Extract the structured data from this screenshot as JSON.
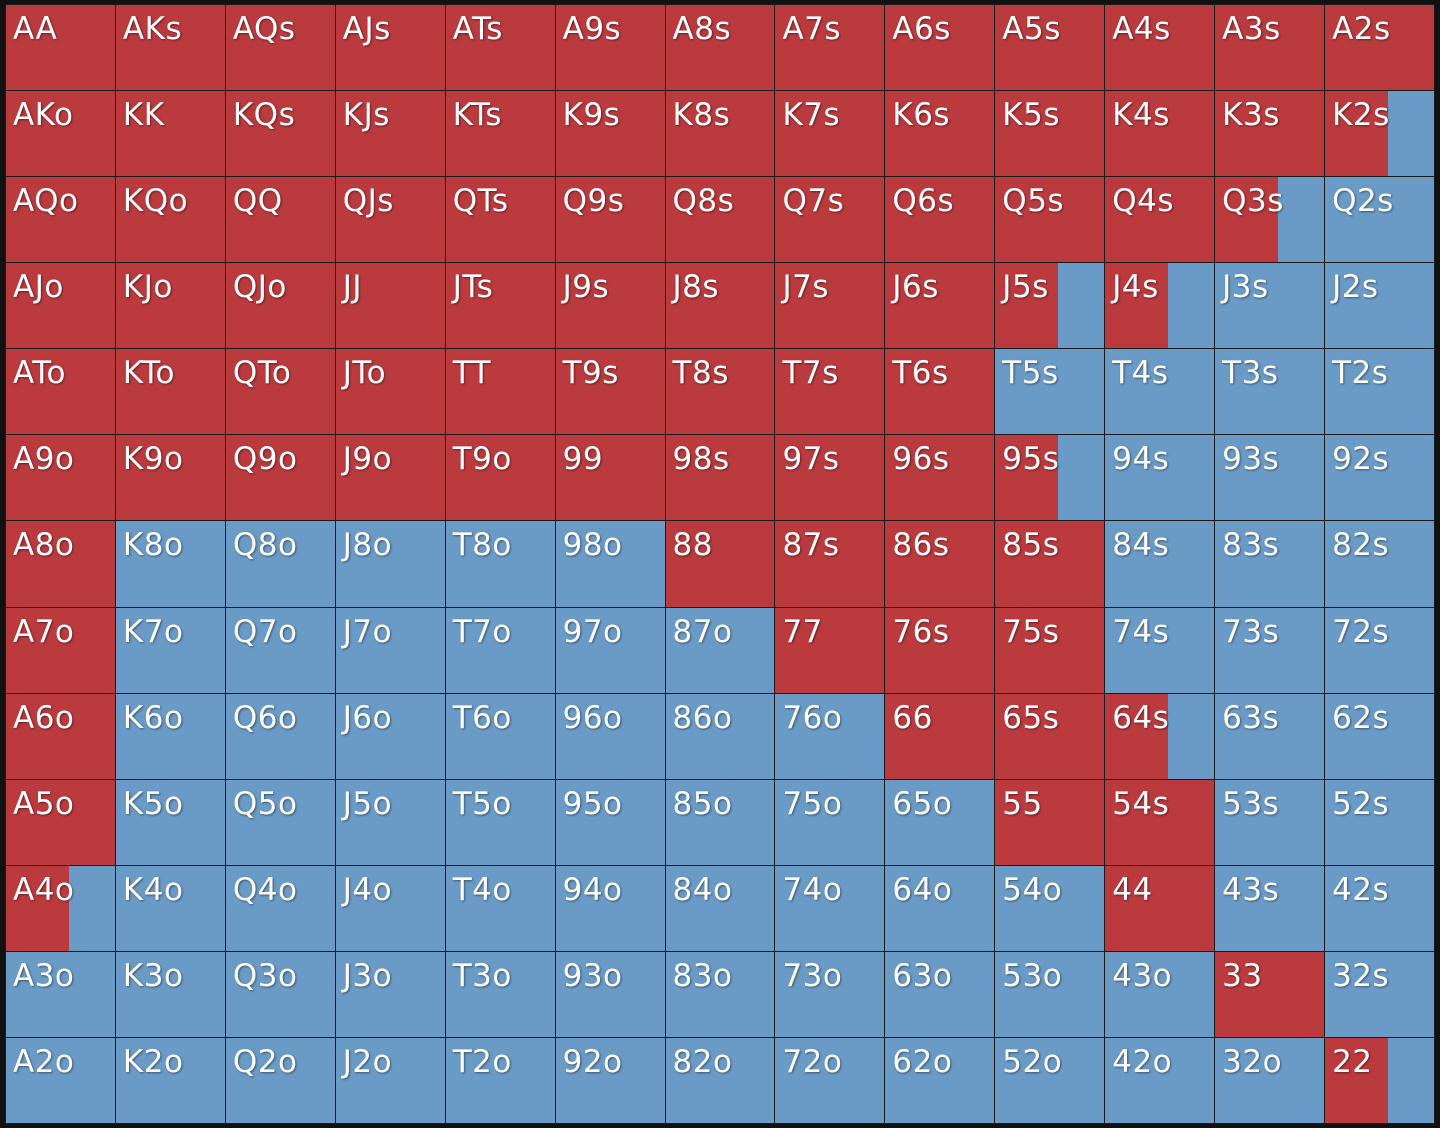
{
  "colors": {
    "raise": "#bb3a3e",
    "fold": "#6a9bc7",
    "border": "#1a1a1a"
  },
  "chart_data": {
    "type": "heatmap",
    "rows": [
      [
        {
          "hand": "AA",
          "raise": 1
        },
        {
          "hand": "AKs",
          "raise": 1
        },
        {
          "hand": "AQs",
          "raise": 1
        },
        {
          "hand": "AJs",
          "raise": 1
        },
        {
          "hand": "ATs",
          "raise": 1
        },
        {
          "hand": "A9s",
          "raise": 1
        },
        {
          "hand": "A8s",
          "raise": 1
        },
        {
          "hand": "A7s",
          "raise": 1
        },
        {
          "hand": "A6s",
          "raise": 1
        },
        {
          "hand": "A5s",
          "raise": 1
        },
        {
          "hand": "A4s",
          "raise": 1
        },
        {
          "hand": "A3s",
          "raise": 1
        },
        {
          "hand": "A2s",
          "raise": 1
        }
      ],
      [
        {
          "hand": "AKo",
          "raise": 1
        },
        {
          "hand": "KK",
          "raise": 1
        },
        {
          "hand": "KQs",
          "raise": 1
        },
        {
          "hand": "KJs",
          "raise": 1
        },
        {
          "hand": "KTs",
          "raise": 1
        },
        {
          "hand": "K9s",
          "raise": 1
        },
        {
          "hand": "K8s",
          "raise": 1
        },
        {
          "hand": "K7s",
          "raise": 1
        },
        {
          "hand": "K6s",
          "raise": 1
        },
        {
          "hand": "K5s",
          "raise": 1
        },
        {
          "hand": "K4s",
          "raise": 1
        },
        {
          "hand": "K3s",
          "raise": 1
        },
        {
          "hand": "K2s",
          "raise": 0.58
        }
      ],
      [
        {
          "hand": "AQo",
          "raise": 1
        },
        {
          "hand": "KQo",
          "raise": 1
        },
        {
          "hand": "QQ",
          "raise": 1
        },
        {
          "hand": "QJs",
          "raise": 1
        },
        {
          "hand": "QTs",
          "raise": 1
        },
        {
          "hand": "Q9s",
          "raise": 1
        },
        {
          "hand": "Q8s",
          "raise": 1
        },
        {
          "hand": "Q7s",
          "raise": 1
        },
        {
          "hand": "Q6s",
          "raise": 1
        },
        {
          "hand": "Q5s",
          "raise": 1
        },
        {
          "hand": "Q4s",
          "raise": 1
        },
        {
          "hand": "Q3s",
          "raise": 0.58
        },
        {
          "hand": "Q2s",
          "raise": 0
        }
      ],
      [
        {
          "hand": "AJo",
          "raise": 1
        },
        {
          "hand": "KJo",
          "raise": 1
        },
        {
          "hand": "QJo",
          "raise": 1
        },
        {
          "hand": "JJ",
          "raise": 1
        },
        {
          "hand": "JTs",
          "raise": 1
        },
        {
          "hand": "J9s",
          "raise": 1
        },
        {
          "hand": "J8s",
          "raise": 1
        },
        {
          "hand": "J7s",
          "raise": 1
        },
        {
          "hand": "J6s",
          "raise": 1
        },
        {
          "hand": "J5s",
          "raise": 0.58
        },
        {
          "hand": "J4s",
          "raise": 0.58
        },
        {
          "hand": "J3s",
          "raise": 0
        },
        {
          "hand": "J2s",
          "raise": 0
        }
      ],
      [
        {
          "hand": "ATo",
          "raise": 1
        },
        {
          "hand": "KTo",
          "raise": 1
        },
        {
          "hand": "QTo",
          "raise": 1
        },
        {
          "hand": "JTo",
          "raise": 1
        },
        {
          "hand": "TT",
          "raise": 1
        },
        {
          "hand": "T9s",
          "raise": 1
        },
        {
          "hand": "T8s",
          "raise": 1
        },
        {
          "hand": "T7s",
          "raise": 1
        },
        {
          "hand": "T6s",
          "raise": 1
        },
        {
          "hand": "T5s",
          "raise": 0
        },
        {
          "hand": "T4s",
          "raise": 0
        },
        {
          "hand": "T3s",
          "raise": 0
        },
        {
          "hand": "T2s",
          "raise": 0
        }
      ],
      [
        {
          "hand": "A9o",
          "raise": 1
        },
        {
          "hand": "K9o",
          "raise": 1
        },
        {
          "hand": "Q9o",
          "raise": 1
        },
        {
          "hand": "J9o",
          "raise": 1
        },
        {
          "hand": "T9o",
          "raise": 1
        },
        {
          "hand": "99",
          "raise": 1
        },
        {
          "hand": "98s",
          "raise": 1
        },
        {
          "hand": "97s",
          "raise": 1
        },
        {
          "hand": "96s",
          "raise": 1
        },
        {
          "hand": "95s",
          "raise": 0.58
        },
        {
          "hand": "94s",
          "raise": 0
        },
        {
          "hand": "93s",
          "raise": 0
        },
        {
          "hand": "92s",
          "raise": 0
        }
      ],
      [
        {
          "hand": "A8o",
          "raise": 1
        },
        {
          "hand": "K8o",
          "raise": 0
        },
        {
          "hand": "Q8o",
          "raise": 0
        },
        {
          "hand": "J8o",
          "raise": 0
        },
        {
          "hand": "T8o",
          "raise": 0
        },
        {
          "hand": "98o",
          "raise": 0
        },
        {
          "hand": "88",
          "raise": 1
        },
        {
          "hand": "87s",
          "raise": 1
        },
        {
          "hand": "86s",
          "raise": 1
        },
        {
          "hand": "85s",
          "raise": 1
        },
        {
          "hand": "84s",
          "raise": 0
        },
        {
          "hand": "83s",
          "raise": 0
        },
        {
          "hand": "82s",
          "raise": 0
        }
      ],
      [
        {
          "hand": "A7o",
          "raise": 1
        },
        {
          "hand": "K7o",
          "raise": 0
        },
        {
          "hand": "Q7o",
          "raise": 0
        },
        {
          "hand": "J7o",
          "raise": 0
        },
        {
          "hand": "T7o",
          "raise": 0
        },
        {
          "hand": "97o",
          "raise": 0
        },
        {
          "hand": "87o",
          "raise": 0
        },
        {
          "hand": "77",
          "raise": 1
        },
        {
          "hand": "76s",
          "raise": 1
        },
        {
          "hand": "75s",
          "raise": 1
        },
        {
          "hand": "74s",
          "raise": 0
        },
        {
          "hand": "73s",
          "raise": 0
        },
        {
          "hand": "72s",
          "raise": 0
        }
      ],
      [
        {
          "hand": "A6o",
          "raise": 1
        },
        {
          "hand": "K6o",
          "raise": 0
        },
        {
          "hand": "Q6o",
          "raise": 0
        },
        {
          "hand": "J6o",
          "raise": 0
        },
        {
          "hand": "T6o",
          "raise": 0
        },
        {
          "hand": "96o",
          "raise": 0
        },
        {
          "hand": "86o",
          "raise": 0
        },
        {
          "hand": "76o",
          "raise": 0
        },
        {
          "hand": "66",
          "raise": 1
        },
        {
          "hand": "65s",
          "raise": 1
        },
        {
          "hand": "64s",
          "raise": 0.58
        },
        {
          "hand": "63s",
          "raise": 0
        },
        {
          "hand": "62s",
          "raise": 0
        }
      ],
      [
        {
          "hand": "A5o",
          "raise": 1
        },
        {
          "hand": "K5o",
          "raise": 0
        },
        {
          "hand": "Q5o",
          "raise": 0
        },
        {
          "hand": "J5o",
          "raise": 0
        },
        {
          "hand": "T5o",
          "raise": 0
        },
        {
          "hand": "95o",
          "raise": 0
        },
        {
          "hand": "85o",
          "raise": 0
        },
        {
          "hand": "75o",
          "raise": 0
        },
        {
          "hand": "65o",
          "raise": 0
        },
        {
          "hand": "55",
          "raise": 1
        },
        {
          "hand": "54s",
          "raise": 1
        },
        {
          "hand": "53s",
          "raise": 0
        },
        {
          "hand": "52s",
          "raise": 0
        }
      ],
      [
        {
          "hand": "A4o",
          "raise": 0.58
        },
        {
          "hand": "K4o",
          "raise": 0
        },
        {
          "hand": "Q4o",
          "raise": 0
        },
        {
          "hand": "J4o",
          "raise": 0
        },
        {
          "hand": "T4o",
          "raise": 0
        },
        {
          "hand": "94o",
          "raise": 0
        },
        {
          "hand": "84o",
          "raise": 0
        },
        {
          "hand": "74o",
          "raise": 0
        },
        {
          "hand": "64o",
          "raise": 0
        },
        {
          "hand": "54o",
          "raise": 0
        },
        {
          "hand": "44",
          "raise": 1
        },
        {
          "hand": "43s",
          "raise": 0
        },
        {
          "hand": "42s",
          "raise": 0
        }
      ],
      [
        {
          "hand": "A3o",
          "raise": 0
        },
        {
          "hand": "K3o",
          "raise": 0
        },
        {
          "hand": "Q3o",
          "raise": 0
        },
        {
          "hand": "J3o",
          "raise": 0
        },
        {
          "hand": "T3o",
          "raise": 0
        },
        {
          "hand": "93o",
          "raise": 0
        },
        {
          "hand": "83o",
          "raise": 0
        },
        {
          "hand": "73o",
          "raise": 0
        },
        {
          "hand": "63o",
          "raise": 0
        },
        {
          "hand": "53o",
          "raise": 0
        },
        {
          "hand": "43o",
          "raise": 0
        },
        {
          "hand": "33",
          "raise": 1
        },
        {
          "hand": "32s",
          "raise": 0
        }
      ],
      [
        {
          "hand": "A2o",
          "raise": 0
        },
        {
          "hand": "K2o",
          "raise": 0
        },
        {
          "hand": "Q2o",
          "raise": 0
        },
        {
          "hand": "J2o",
          "raise": 0
        },
        {
          "hand": "T2o",
          "raise": 0
        },
        {
          "hand": "92o",
          "raise": 0
        },
        {
          "hand": "82o",
          "raise": 0
        },
        {
          "hand": "72o",
          "raise": 0
        },
        {
          "hand": "62o",
          "raise": 0
        },
        {
          "hand": "52o",
          "raise": 0
        },
        {
          "hand": "42o",
          "raise": 0
        },
        {
          "hand": "32o",
          "raise": 0
        },
        {
          "hand": "22",
          "raise": 0.58
        }
      ]
    ]
  }
}
